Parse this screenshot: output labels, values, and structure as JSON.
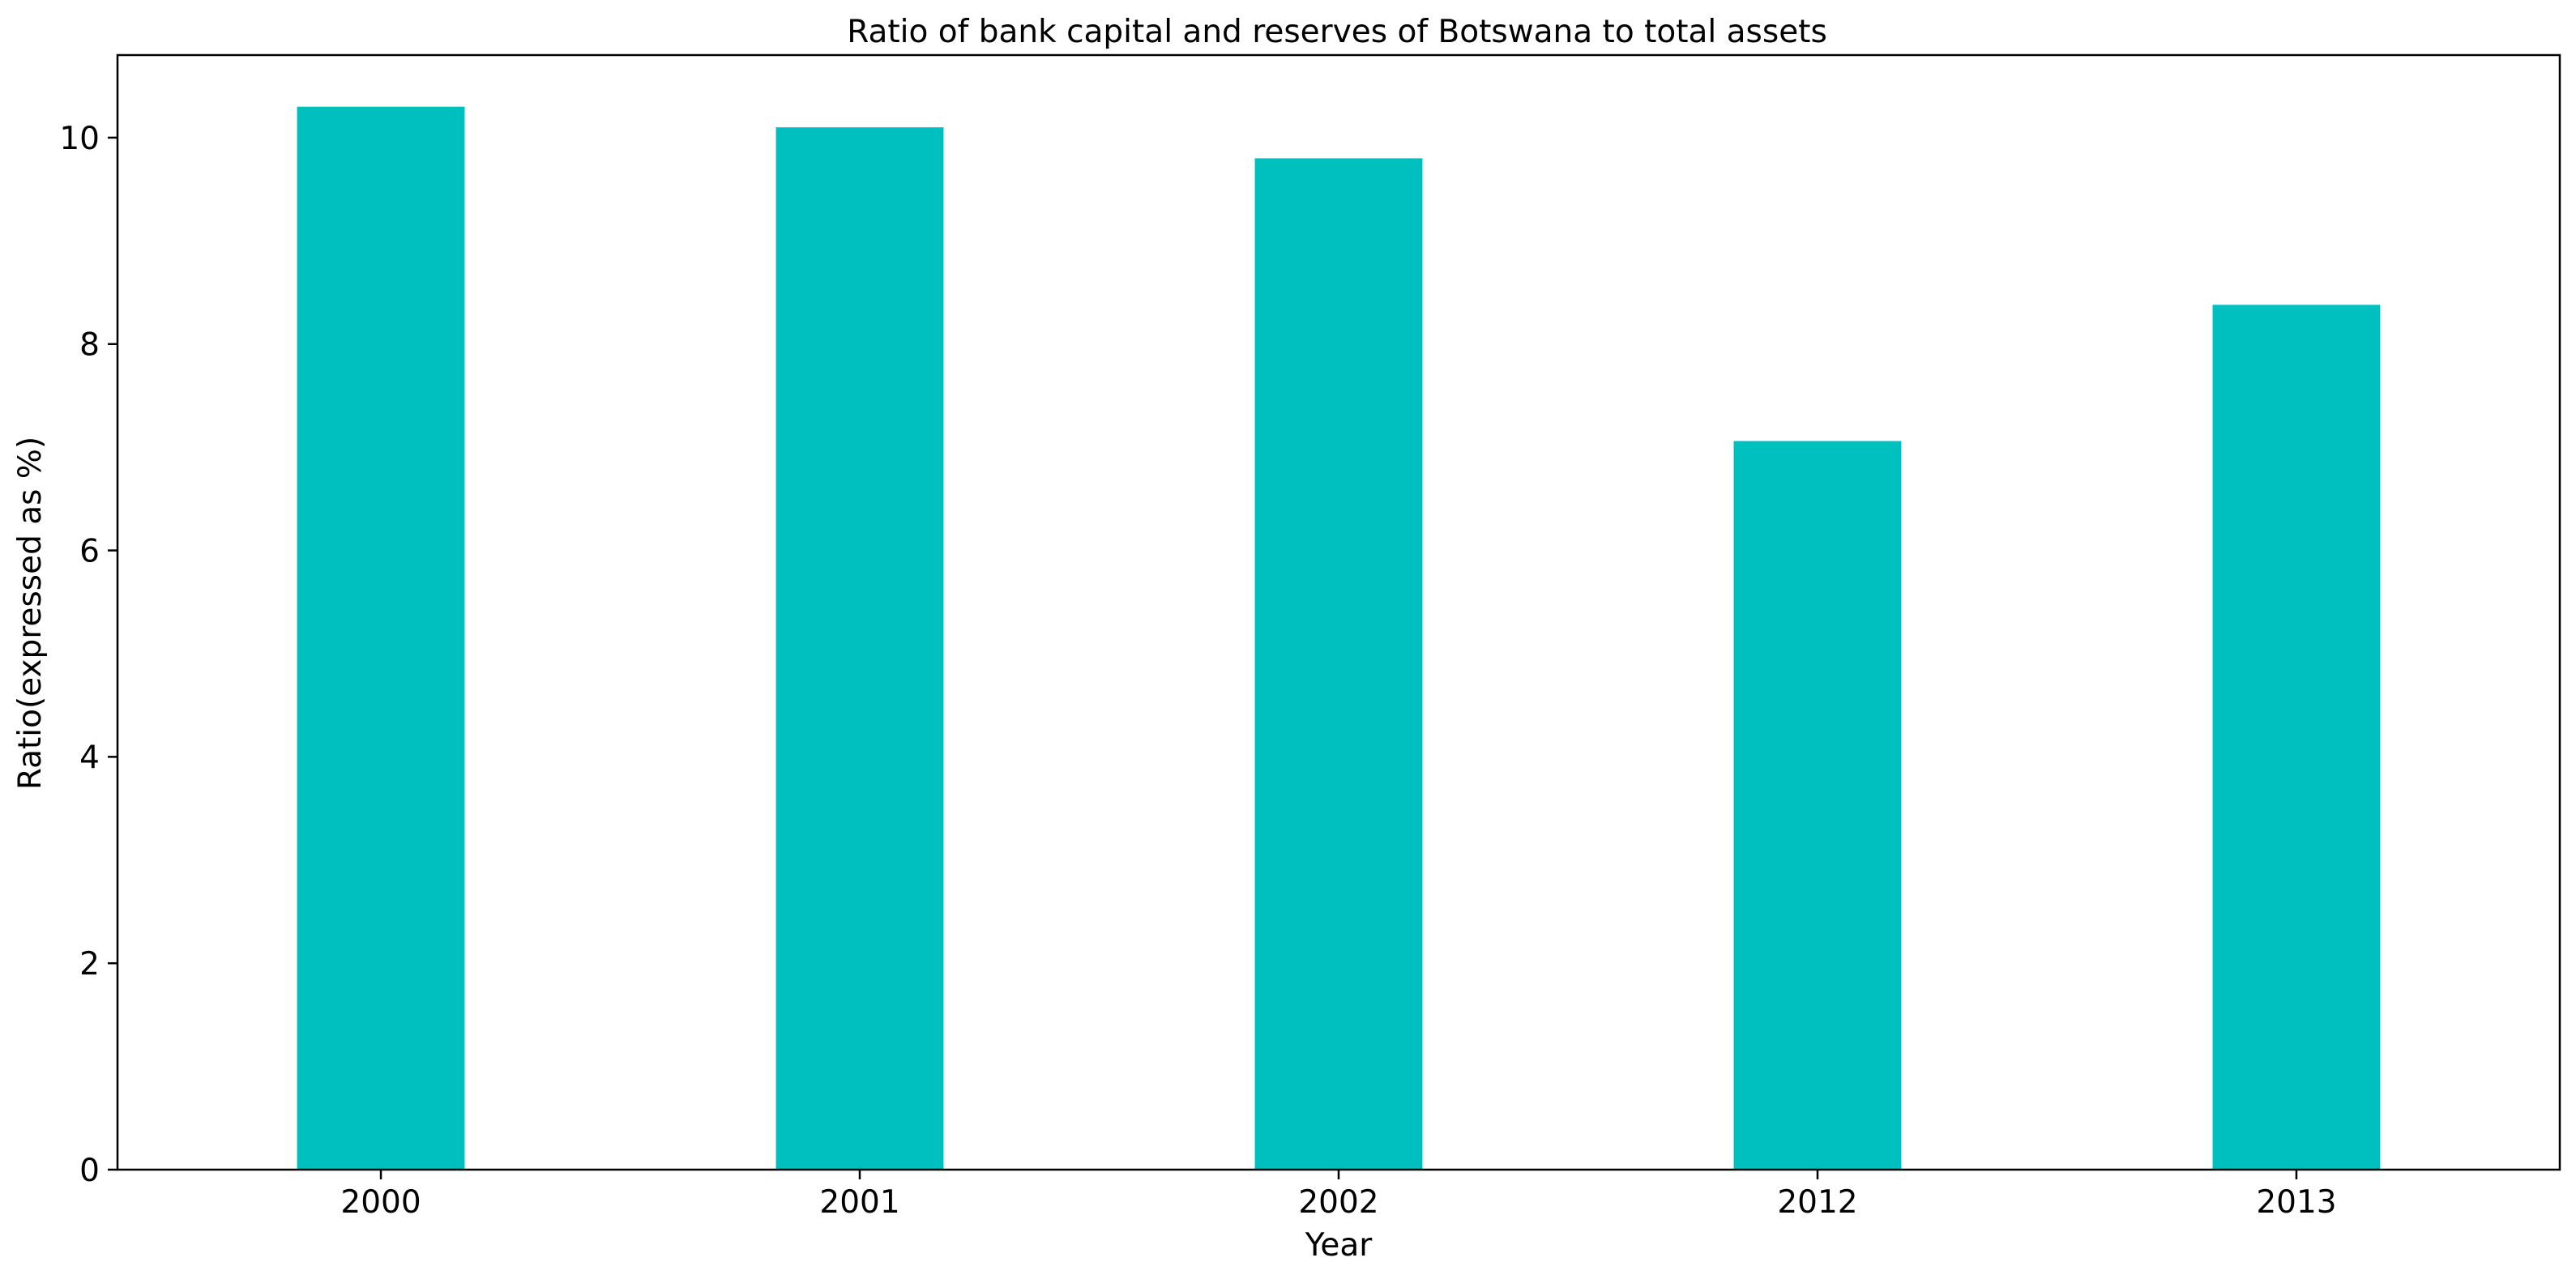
{
  "chart_data": {
    "type": "bar",
    "title": "Ratio of bank capital and reserves of Botswana to total assets",
    "xlabel": "Year",
    "ylabel": "Ratio(expressed as %)",
    "categories": [
      "2000",
      "2001",
      "2002",
      "2012",
      "2013"
    ],
    "values": [
      10.3,
      10.1,
      9.8,
      7.06,
      8.38
    ],
    "ylim": [
      0,
      10.8
    ],
    "yticks": [
      0,
      2,
      4,
      6,
      8,
      10
    ],
    "bar_color": "#00bfbf",
    "grid": false,
    "legend": "none"
  }
}
